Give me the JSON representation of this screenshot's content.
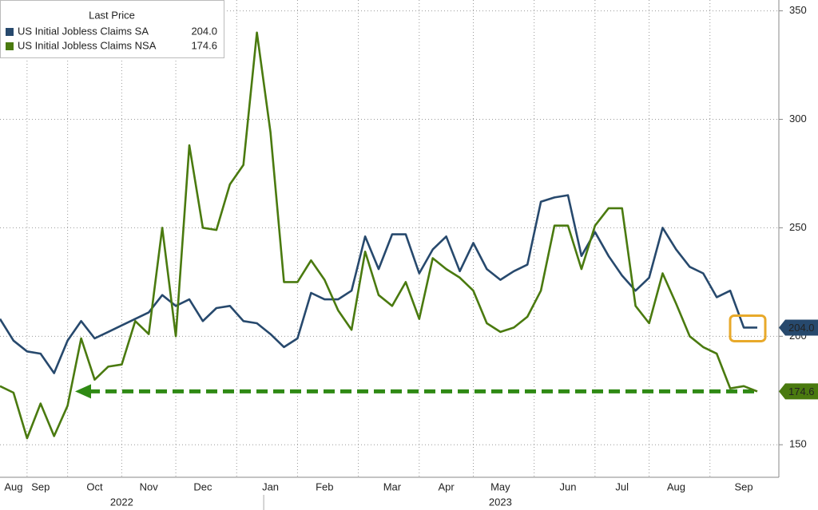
{
  "chart_data": {
    "type": "line",
    "legend_title": "Last Price",
    "categories": [
      null,
      "Aug",
      null,
      "Sep",
      null,
      null,
      null,
      "Oct",
      null,
      null,
      null,
      "Nov",
      null,
      null,
      null,
      "Dec",
      null,
      null,
      null,
      null,
      "Jan",
      null,
      null,
      null,
      "Feb",
      null,
      null,
      null,
      null,
      "Mar",
      null,
      null,
      null,
      "Apr",
      null,
      null,
      null,
      "May",
      null,
      null,
      null,
      null,
      "Jun",
      null,
      null,
      null,
      "Jul",
      null,
      null,
      null,
      "Aug",
      null,
      null,
      null,
      null,
      "Sep",
      null
    ],
    "year_labels": [
      "2022",
      "2023"
    ],
    "series": [
      {
        "name": "US Initial Jobless Claims SA",
        "color": "#27496d",
        "last_value_label": "204.0",
        "values": [
          208,
          198,
          193,
          192,
          183,
          198,
          207,
          199,
          202,
          205,
          208,
          211,
          219,
          214,
          217,
          207,
          213,
          214,
          207,
          206,
          201,
          195,
          199,
          220,
          217,
          217,
          221,
          246,
          231,
          247,
          247,
          229,
          240,
          246,
          230,
          243,
          231,
          226,
          230,
          233,
          262,
          264,
          265,
          237,
          248,
          237,
          228,
          221,
          227,
          250,
          240,
          232,
          229,
          218,
          221,
          204,
          204
        ]
      },
      {
        "name": "US Initial Jobless Claims NSA",
        "color": "#4a7a0f",
        "last_value_label": "174.6",
        "values": [
          177,
          174,
          153,
          169,
          154,
          168,
          199,
          180,
          186,
          187,
          207,
          201,
          250,
          200,
          288,
          250,
          249,
          270,
          279,
          340,
          294,
          225,
          225,
          235,
          226,
          212,
          203,
          239,
          219,
          214,
          225,
          208,
          236,
          231,
          227,
          221,
          206,
          202,
          204,
          209,
          221,
          251,
          251,
          231,
          251,
          259,
          259,
          214,
          206,
          229,
          215,
          200,
          195,
          192,
          176,
          177,
          174.6
        ]
      }
    ],
    "ylim": [
      135,
      355
    ],
    "yticks": [
      150,
      200,
      250,
      300,
      350
    ],
    "grid": true
  }
}
